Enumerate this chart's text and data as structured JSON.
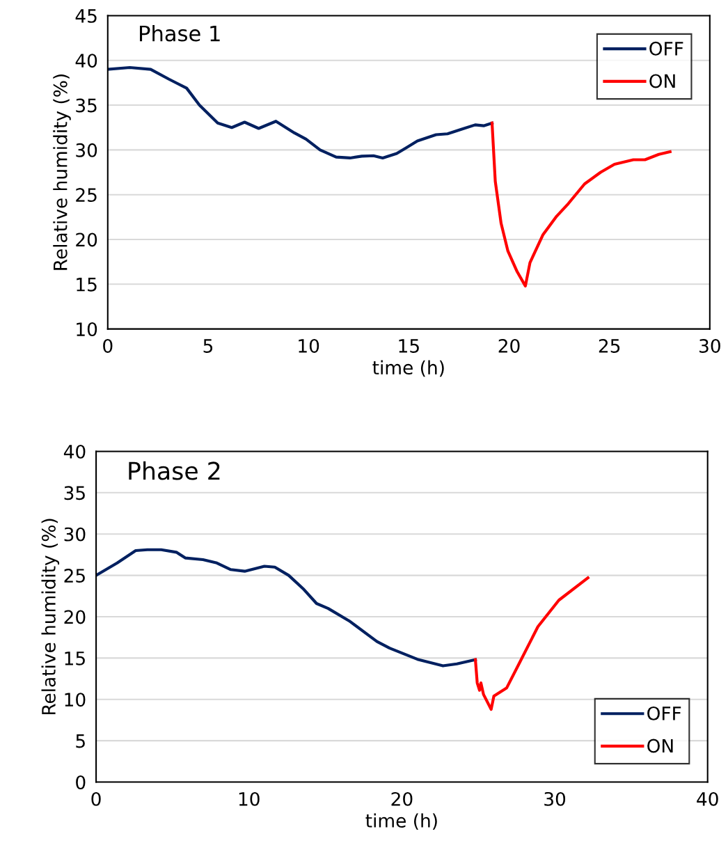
{
  "chart_data": [
    {
      "type": "line",
      "annotations": [
        "Phase 1"
      ],
      "xlabel": "time (h)",
      "ylabel": "Relative humidity (%)",
      "xlim": [
        0,
        30
      ],
      "xticks": [
        0,
        5,
        10,
        15,
        20,
        25,
        30
      ],
      "ylim": [
        10,
        45
      ],
      "yticks": [
        10,
        15,
        20,
        25,
        30,
        35,
        40,
        45
      ],
      "grid": "y",
      "legend": "top right",
      "marker": "none",
      "line_style": "solid",
      "series": [
        {
          "name": "OFF",
          "color": "#002060",
          "x": [
            0,
            1.1,
            2.14,
            3.05,
            3.93,
            4.57,
            5.48,
            6.18,
            6.82,
            7.52,
            8.38,
            9.3,
            9.88,
            10.58,
            11.38,
            12.07,
            12.66,
            13.24,
            13.7,
            14.4,
            14.85,
            15.43,
            16.36,
            16.93,
            17.62,
            18.31,
            18.73,
            19.15
          ],
          "values": [
            39.0,
            39.2,
            39.0,
            37.9,
            36.9,
            35.0,
            33.0,
            32.5,
            33.1,
            32.4,
            33.2,
            31.9,
            31.2,
            30.0,
            29.2,
            29.1,
            29.3,
            29.35,
            29.1,
            29.6,
            30.2,
            31.0,
            31.7,
            31.8,
            32.3,
            32.8,
            32.7,
            33.0
          ]
        },
        {
          "name": "ON",
          "color": "#ff0000",
          "x": [
            19.15,
            19.31,
            19.6,
            19.94,
            20.4,
            20.81,
            21.04,
            21.68,
            22.37,
            22.95,
            23.76,
            24.56,
            25.25,
            26.19,
            26.77,
            27.46,
            28.02
          ],
          "values": [
            33.0,
            26.5,
            21.8,
            18.7,
            16.4,
            14.8,
            17.4,
            20.5,
            22.6,
            24.0,
            26.2,
            27.5,
            28.4,
            28.9,
            28.9,
            29.5,
            29.8
          ]
        }
      ]
    },
    {
      "type": "line",
      "annotations": [
        "Phase 2"
      ],
      "xlabel": "time (h)",
      "ylabel": "Relative humidity (%)",
      "xlim": [
        0,
        40
      ],
      "xticks": [
        0,
        10,
        20,
        30,
        40
      ],
      "ylim": [
        0,
        40
      ],
      "yticks": [
        0,
        5,
        10,
        15,
        20,
        25,
        30,
        35,
        40
      ],
      "grid": "y",
      "legend": "bottom right",
      "marker": "none",
      "line_style": "solid",
      "series": [
        {
          "name": "OFF",
          "color": "#002060",
          "x": [
            0,
            1.38,
            2.59,
            3.35,
            4.26,
            5.25,
            5.85,
            6.99,
            7.9,
            8.81,
            9.72,
            11.01,
            11.69,
            12.6,
            13.59,
            14.42,
            15.18,
            16.55,
            18.37,
            19.2,
            21.02,
            22.69,
            23.6,
            24.81
          ],
          "values": [
            25.0,
            26.5,
            28.0,
            28.1,
            28.1,
            27.8,
            27.1,
            26.9,
            26.5,
            25.7,
            25.5,
            26.1,
            26.0,
            25.0,
            23.3,
            21.6,
            21.0,
            19.5,
            17.0,
            16.2,
            14.85,
            14.06,
            14.3,
            14.8
          ]
        },
        {
          "name": "ON",
          "color": "#ff0000",
          "x": [
            24.81,
            24.93,
            25.08,
            25.17,
            25.34,
            25.84,
            26.02,
            26.86,
            27.69,
            28.9,
            30.27,
            32.17
          ],
          "values": [
            14.8,
            12.0,
            11.1,
            12.0,
            10.6,
            8.8,
            10.4,
            11.4,
            14.4,
            18.8,
            22.0,
            24.7
          ]
        }
      ]
    }
  ]
}
